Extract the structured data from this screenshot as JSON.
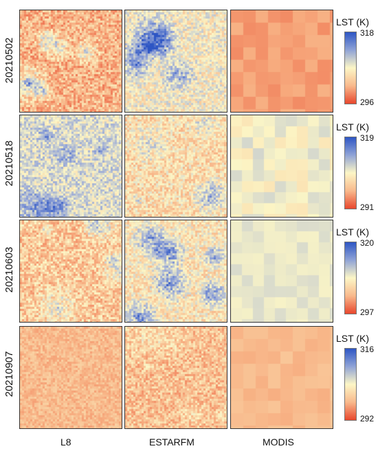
{
  "columns": [
    "L8",
    "ESTARFM",
    "MODIS"
  ],
  "legend_title": "LST (K)",
  "rows": [
    {
      "date": "20210502",
      "max": "318",
      "min": "296"
    },
    {
      "date": "20210518",
      "max": "319",
      "min": "291"
    },
    {
      "date": "20210603",
      "max": "320",
      "min": "297"
    },
    {
      "date": "20210907",
      "max": "316",
      "min": "292"
    }
  ],
  "colors": {
    "high": "#2e56c4",
    "mid": "#fcf6c6",
    "low": "#e8472d"
  }
}
